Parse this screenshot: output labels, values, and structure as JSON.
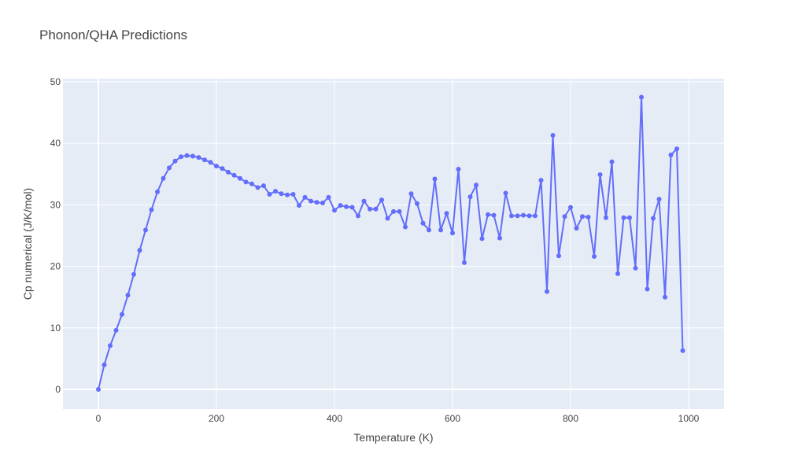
{
  "chart_data": {
    "type": "line",
    "mode": "lines+markers",
    "title": "Phonon/QHA Predictions",
    "xlabel": "Temperature (K)",
    "ylabel": "Cp numerical (J/K/mol)",
    "xlim": [
      -60,
      1060
    ],
    "ylim": [
      -3.2,
      50.5
    ],
    "xticks": [
      0,
      200,
      400,
      600,
      800,
      1000
    ],
    "yticks": [
      0,
      10,
      20,
      30,
      40,
      50
    ],
    "grid": true,
    "colors": {
      "series": "#636efa",
      "plot_bg": "#e5ecf6",
      "grid": "#ffffff",
      "paper": "#ffffff"
    },
    "series": [
      {
        "x": [
          0,
          10,
          20,
          30,
          40,
          50,
          60,
          70,
          80,
          90,
          100,
          110,
          120,
          130,
          140,
          150,
          160,
          170,
          180,
          190,
          200,
          210,
          220,
          230,
          240,
          250,
          260,
          270,
          280,
          290,
          300,
          310,
          320,
          330,
          340,
          350,
          360,
          370,
          380,
          390,
          400,
          410,
          420,
          430,
          440,
          450,
          460,
          470,
          480,
          490,
          500,
          510,
          520,
          530,
          540,
          550,
          560,
          570,
          580,
          590,
          600,
          610,
          620,
          630,
          640,
          650,
          660,
          670,
          680,
          690,
          700,
          710,
          720,
          730,
          740,
          750,
          760,
          770,
          780,
          790,
          800,
          810,
          820,
          830,
          840,
          850,
          860,
          870,
          880,
          890,
          900,
          910,
          920,
          930,
          940,
          950,
          960,
          970,
          980,
          990
        ],
        "y": [
          0,
          4,
          7.1,
          9.6,
          12.2,
          15.3,
          18.7,
          22.6,
          25.9,
          29.2,
          32.1,
          34.3,
          36,
          37.1,
          37.8,
          38,
          37.9,
          37.7,
          37.3,
          36.9,
          36.3,
          35.9,
          35.3,
          34.8,
          34.3,
          33.7,
          33.4,
          32.8,
          33.1,
          31.7,
          32.2,
          31.8,
          31.6,
          31.7,
          29.9,
          31.2,
          30.6,
          30.4,
          30.3,
          31.2,
          29.1,
          29.9,
          29.7,
          29.6,
          28.2,
          30.6,
          29.3,
          29.3,
          30.8,
          27.8,
          28.9,
          28.9,
          26.4,
          31.8,
          30.2,
          27,
          25.9,
          34.2,
          25.9,
          28.6,
          25.4,
          35.8,
          20.6,
          31.3,
          33.2,
          24.5,
          28.4,
          28.3,
          24.6,
          31.9,
          28.2,
          28.2,
          28.3,
          28.2,
          28.2,
          34,
          15.9,
          41.3,
          21.7,
          28.1,
          29.6,
          26.2,
          28.1,
          28,
          21.6,
          34.9,
          27.9,
          37,
          18.8,
          27.9,
          27.9,
          19.7,
          47.5,
          16.3,
          27.8,
          30.9,
          15,
          38.1,
          39.1,
          6.3
        ]
      }
    ]
  }
}
